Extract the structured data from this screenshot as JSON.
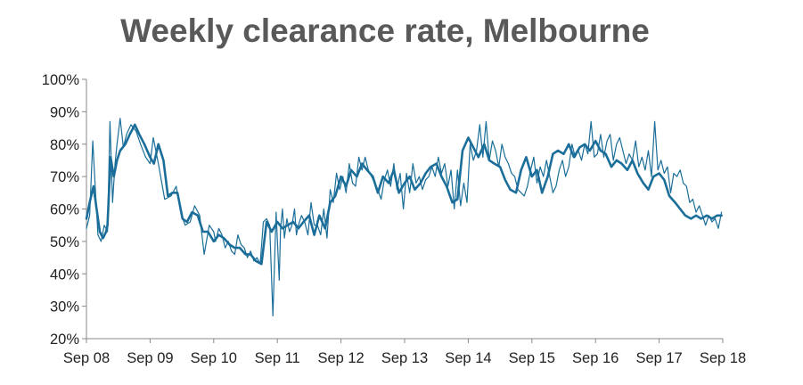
{
  "chart_data": {
    "type": "line",
    "title": "Weekly clearance rate, Melbourne",
    "xlabel": "",
    "ylabel": "",
    "x_tick_labels": [
      "Sep 08",
      "Sep 09",
      "Sep 10",
      "Sep 11",
      "Sep 12",
      "Sep 13",
      "Sep 14",
      "Sep 15",
      "Sep 16",
      "Sep 17",
      "Sep 18"
    ],
    "y_tick_labels": [
      "20%",
      "30%",
      "40%",
      "50%",
      "60%",
      "70%",
      "80%",
      "90%",
      "100%"
    ],
    "y_ticks": [
      20,
      30,
      40,
      50,
      60,
      70,
      80,
      90,
      100
    ],
    "xlim": [
      2008.67,
      2018.67
    ],
    "ylim": [
      20,
      100
    ],
    "grid": false,
    "legend": "none",
    "colors": {
      "series": "#1b6e99",
      "axis": "#888888",
      "title": "#595959"
    },
    "series": [
      {
        "style": "thin",
        "x": [
          2008.67,
          2008.72,
          2008.77,
          2008.81,
          2008.85,
          2008.9,
          2008.95,
          2009.0,
          2009.04,
          2009.08,
          2009.12,
          2009.15,
          2009.2,
          2009.25,
          2009.3,
          2009.37,
          2009.45,
          2009.52,
          2009.6,
          2009.67,
          2009.72,
          2009.8,
          2009.9,
          2010.0,
          2010.08,
          2010.15,
          2010.22,
          2010.3,
          2010.37,
          2010.45,
          2010.52,
          2010.6,
          2010.67,
          2010.7,
          2010.75,
          2010.8,
          2010.85,
          2010.9,
          2010.95,
          2011.0,
          2011.05,
          2011.1,
          2011.15,
          2011.2,
          2011.25,
          2011.3,
          2011.35,
          2011.4,
          2011.45,
          2011.5,
          2011.55,
          2011.6,
          2011.65,
          2011.7,
          2011.72,
          2011.75,
          2011.78,
          2011.82,
          2011.86,
          2011.9,
          2011.94,
          2011.97,
          2012.0,
          2012.05,
          2012.1,
          2012.15,
          2012.2,
          2012.25,
          2012.3,
          2012.35,
          2012.4,
          2012.45,
          2012.5,
          2012.55,
          2012.6,
          2012.65,
          2012.7,
          2012.75,
          2012.8,
          2012.85,
          2012.9,
          2012.95,
          2013.0,
          2013.05,
          2013.1,
          2013.15,
          2013.2,
          2013.25,
          2013.3,
          2013.35,
          2013.4,
          2013.45,
          2013.5,
          2013.55,
          2013.6,
          2013.65,
          2013.7,
          2013.75,
          2013.8,
          2013.85,
          2013.9,
          2013.95,
          2014.0,
          2014.05,
          2014.1,
          2014.15,
          2014.2,
          2014.25,
          2014.3,
          2014.35,
          2014.4,
          2014.45,
          2014.5,
          2014.55,
          2014.6,
          2014.65,
          2014.7,
          2014.75,
          2014.8,
          2014.85,
          2014.9,
          2014.95,
          2015.0,
          2015.05,
          2015.1,
          2015.15,
          2015.2,
          2015.25,
          2015.3,
          2015.35,
          2015.4,
          2015.45,
          2015.5,
          2015.55,
          2015.6,
          2015.65,
          2015.7,
          2015.75,
          2015.8,
          2015.85,
          2015.9,
          2015.95,
          2016.0,
          2016.05,
          2016.1,
          2016.15,
          2016.2,
          2016.25,
          2016.3,
          2016.35,
          2016.4,
          2016.45,
          2016.5,
          2016.55,
          2016.6,
          2016.65,
          2016.7,
          2016.75,
          2016.8,
          2016.85,
          2016.9,
          2016.95,
          2017.0,
          2017.05,
          2017.1,
          2017.15,
          2017.2,
          2017.25,
          2017.3,
          2017.35,
          2017.4,
          2017.45,
          2017.5,
          2017.55,
          2017.6,
          2017.65,
          2017.7,
          2017.75,
          2017.8,
          2017.85,
          2017.9,
          2017.95,
          2018.0,
          2018.05,
          2018.1,
          2018.15,
          2018.2,
          2018.25,
          2018.3,
          2018.35,
          2018.4,
          2018.45,
          2018.5,
          2018.55,
          2018.6,
          2018.65
        ],
        "y": [
          54,
          58,
          81,
          66,
          52,
          50,
          55,
          53,
          87,
          62,
          74,
          80,
          88,
          79,
          83,
          86,
          84,
          80,
          76,
          74,
          82,
          74,
          63,
          64,
          67,
          59,
          55,
          56,
          61,
          58,
          46,
          55,
          53,
          50,
          54,
          52,
          48,
          50,
          47,
          46,
          52,
          49,
          48,
          45,
          47,
          44,
          45,
          43,
          56,
          57,
          55,
          27,
          59,
          38,
          54,
          60,
          51,
          57,
          53,
          55,
          60,
          52,
          55,
          58,
          56,
          52,
          62,
          55,
          55,
          52,
          60,
          51,
          66,
          62,
          71,
          66,
          70,
          65,
          74,
          68,
          67,
          76,
          72,
          76,
          72,
          70,
          68,
          66,
          63,
          69,
          72,
          67,
          74,
          66,
          71,
          60,
          71,
          65,
          74,
          68,
          70,
          66,
          69,
          70,
          73,
          70,
          76,
          71,
          74,
          67,
          72,
          60,
          72,
          61,
          68,
          62,
          80,
          75,
          78,
          86,
          76,
          87,
          75,
          81,
          78,
          73,
          80,
          76,
          74,
          71,
          70,
          66,
          65,
          64,
          67,
          72,
          76,
          68,
          73,
          70,
          75,
          70,
          65,
          67,
          72,
          75,
          70,
          73,
          80,
          76,
          78,
          75,
          80,
          77,
          87,
          76,
          77,
          83,
          76,
          81,
          83,
          75,
          80,
          82,
          78,
          74,
          77,
          75,
          81,
          73,
          76,
          72,
          78,
          70,
          87,
          72,
          75,
          71,
          73,
          65,
          71,
          70,
          72,
          68,
          67,
          62,
          63,
          59,
          61,
          58,
          55,
          58,
          56,
          57,
          54,
          59
        ]
      },
      {
        "style": "thick",
        "x": [
          2008.67,
          2008.72,
          2008.78,
          2008.83,
          2008.88,
          2008.93,
          2008.98,
          2009.0,
          2009.05,
          2009.1,
          2009.15,
          2009.2,
          2009.28,
          2009.35,
          2009.43,
          2009.5,
          2009.58,
          2009.67,
          2009.73,
          2009.8,
          2009.88,
          2009.95,
          2010.02,
          2010.1,
          2010.18,
          2010.25,
          2010.33,
          2010.42,
          2010.5,
          2010.58,
          2010.67,
          2010.75,
          2010.83,
          2010.92,
          2011.0,
          2011.08,
          2011.17,
          2011.25,
          2011.33,
          2011.42,
          2011.5,
          2011.58,
          2011.67,
          2011.75,
          2011.83,
          2011.92,
          2012.0,
          2012.08,
          2012.17,
          2012.25,
          2012.33,
          2012.42,
          2012.5,
          2012.58,
          2012.67,
          2012.75,
          2012.83,
          2012.92,
          2013.0,
          2013.08,
          2013.17,
          2013.25,
          2013.33,
          2013.42,
          2013.5,
          2013.58,
          2013.67,
          2013.75,
          2013.83,
          2013.92,
          2014.0,
          2014.08,
          2014.17,
          2014.25,
          2014.33,
          2014.42,
          2014.5,
          2014.58,
          2014.67,
          2014.75,
          2014.83,
          2014.92,
          2015.0,
          2015.08,
          2015.17,
          2015.25,
          2015.33,
          2015.42,
          2015.5,
          2015.58,
          2015.67,
          2015.75,
          2015.83,
          2015.92,
          2016.0,
          2016.08,
          2016.17,
          2016.25,
          2016.33,
          2016.42,
          2016.5,
          2016.58,
          2016.67,
          2016.75,
          2016.83,
          2016.92,
          2017.0,
          2017.08,
          2017.17,
          2017.25,
          2017.33,
          2017.42,
          2017.5,
          2017.58,
          2017.67,
          2017.75,
          2017.83,
          2017.92,
          2018.0,
          2018.08,
          2018.17,
          2018.25,
          2018.33,
          2018.42,
          2018.5,
          2018.58,
          2018.65
        ],
        "y": [
          57,
          62,
          67,
          60,
          53,
          51,
          53,
          55,
          76,
          70,
          75,
          78,
          80,
          83,
          86,
          83,
          80,
          76,
          74,
          80,
          75,
          64,
          65,
          65,
          57,
          56,
          59,
          58,
          53,
          53,
          50,
          52,
          51,
          49,
          48,
          48,
          46,
          46,
          44,
          43,
          56,
          53,
          56,
          54,
          55,
          56,
          54,
          56,
          58,
          52,
          58,
          54,
          62,
          64,
          70,
          67,
          72,
          70,
          74,
          72,
          70,
          65,
          70,
          68,
          72,
          65,
          68,
          70,
          66,
          68,
          71,
          73,
          74,
          70,
          67,
          62,
          63,
          78,
          82,
          79,
          76,
          80,
          75,
          74,
          73,
          69,
          66,
          65,
          72,
          76,
          70,
          72,
          65,
          70,
          77,
          78,
          77,
          80,
          76,
          79,
          80,
          78,
          81,
          78,
          77,
          73,
          75,
          74,
          72,
          75,
          71,
          68,
          66,
          70,
          71,
          69,
          64,
          62,
          60,
          58,
          57,
          58,
          57,
          58,
          57,
          58,
          58
        ]
      }
    ]
  }
}
